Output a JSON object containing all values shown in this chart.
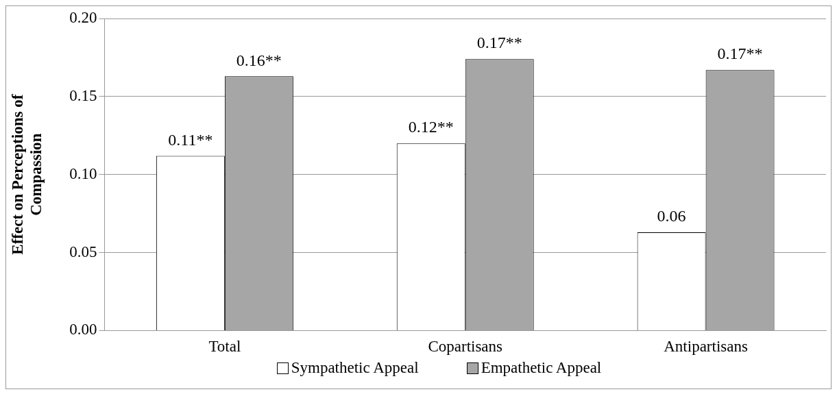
{
  "chart_data": {
    "type": "bar",
    "ylabel": "Effect on Perceptions of Compassion",
    "categories": [
      "Total",
      "Copartisans",
      "Antipartisans"
    ],
    "series": [
      {
        "name": "Sympathetic Appeal",
        "color": "#ffffff",
        "values": [
          0.112,
          0.12,
          0.063
        ],
        "value_labels": [
          "0.11**",
          "0.12**",
          "0.06"
        ]
      },
      {
        "name": "Empathetic Appeal",
        "color": "#a6a6a6",
        "values": [
          0.163,
          0.174,
          0.167
        ],
        "value_labels": [
          "0.16**",
          "0.17**",
          "0.17**"
        ]
      }
    ],
    "ylim": [
      0,
      0.2
    ],
    "yticks": [
      {
        "value": 0,
        "label": "0.00"
      },
      {
        "value": 0.05,
        "label": "0.05"
      },
      {
        "value": 0.1,
        "label": "0.10"
      },
      {
        "value": 0.15,
        "label": "0.15"
      },
      {
        "value": 0.2,
        "label": "0.20"
      }
    ],
    "grid": "y",
    "legend": "bottom"
  }
}
